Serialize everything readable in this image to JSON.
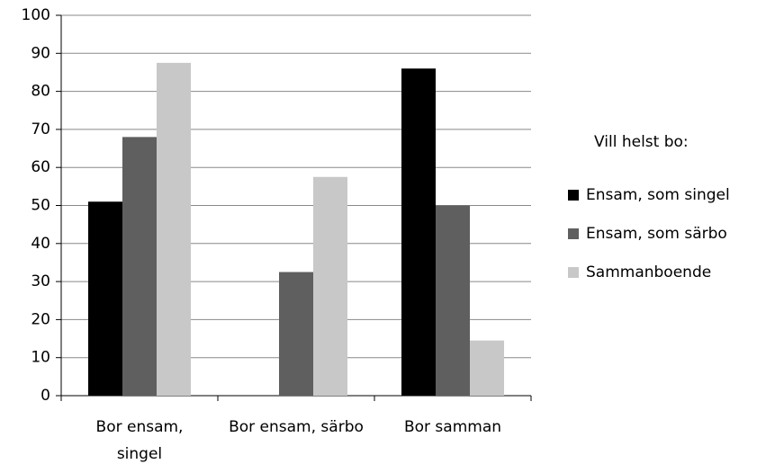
{
  "chart_data": {
    "type": "bar",
    "categories": [
      "Bor ensam, singel",
      "Bor ensam, särbo",
      "Bor samman"
    ],
    "series": [
      {
        "name": "Ensam, som singel",
        "color": "#000000",
        "values": [
          51,
          0,
          86
        ]
      },
      {
        "name": "Ensam, som särbo",
        "color": "#5f5f5f",
        "values": [
          68,
          32.5,
          50
        ]
      },
      {
        "name": "Sammanboende",
        "color": "#c8c8c8",
        "values": [
          87.5,
          57.5,
          14.5
        ]
      }
    ],
    "legend_title": "Vill helst bo:",
    "ylim": [
      0,
      100
    ],
    "yticks": [
      0,
      10,
      20,
      30,
      40,
      50,
      60,
      70,
      80,
      90,
      100
    ],
    "grid": true,
    "legend": "right"
  }
}
